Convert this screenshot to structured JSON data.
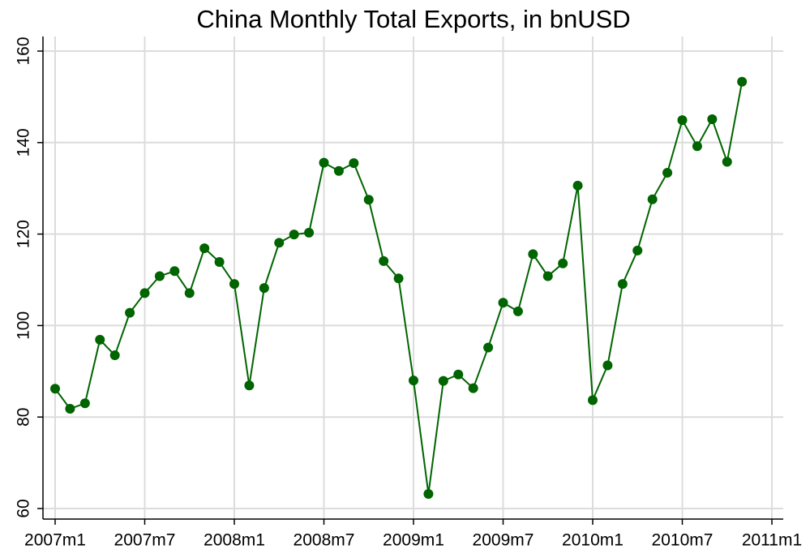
{
  "chart_data": {
    "type": "line",
    "title": "China Monthly Total Exports, in bnUSD",
    "x": [
      "2007m1",
      "2007m2",
      "2007m3",
      "2007m4",
      "2007m5",
      "2007m6",
      "2007m7",
      "2007m8",
      "2007m9",
      "2007m10",
      "2007m11",
      "2007m12",
      "2008m1",
      "2008m2",
      "2008m3",
      "2008m4",
      "2008m5",
      "2008m6",
      "2008m7",
      "2008m8",
      "2008m9",
      "2008m10",
      "2008m11",
      "2008m12",
      "2009m1",
      "2009m2",
      "2009m3",
      "2009m4",
      "2009m5",
      "2009m6",
      "2009m7",
      "2009m8",
      "2009m9",
      "2009m10",
      "2009m11",
      "2009m12",
      "2010m1",
      "2010m2",
      "2010m3",
      "2010m4",
      "2010m5",
      "2010m6",
      "2010m7",
      "2010m8",
      "2010m9",
      "2010m10",
      "2010m11"
    ],
    "values": [
      86.2,
      81.8,
      83.0,
      96.9,
      93.5,
      102.8,
      107.1,
      110.8,
      111.9,
      107.1,
      116.9,
      113.9,
      109.1,
      86.9,
      108.2,
      118.1,
      119.9,
      120.3,
      135.6,
      133.8,
      135.5,
      127.5,
      114.1,
      110.3,
      88.0,
      63.2,
      87.9,
      89.3,
      86.3,
      95.2,
      105.0,
      103.1,
      115.6,
      110.8,
      113.6,
      130.6,
      83.7,
      91.3,
      109.1,
      116.4,
      127.6,
      133.4,
      144.9,
      139.2,
      145.1,
      135.8,
      153.3
    ],
    "color": "#006400",
    "xlim": [
      "2007m1",
      "2011m1"
    ],
    "xticks": [
      "2007m1",
      "2007m7",
      "2008m1",
      "2008m7",
      "2009m1",
      "2009m7",
      "2010m1",
      "2010m7",
      "2011m1"
    ],
    "ylim": [
      60,
      160
    ],
    "yticks": [
      60,
      80,
      100,
      120,
      140,
      160
    ],
    "grid": true
  }
}
